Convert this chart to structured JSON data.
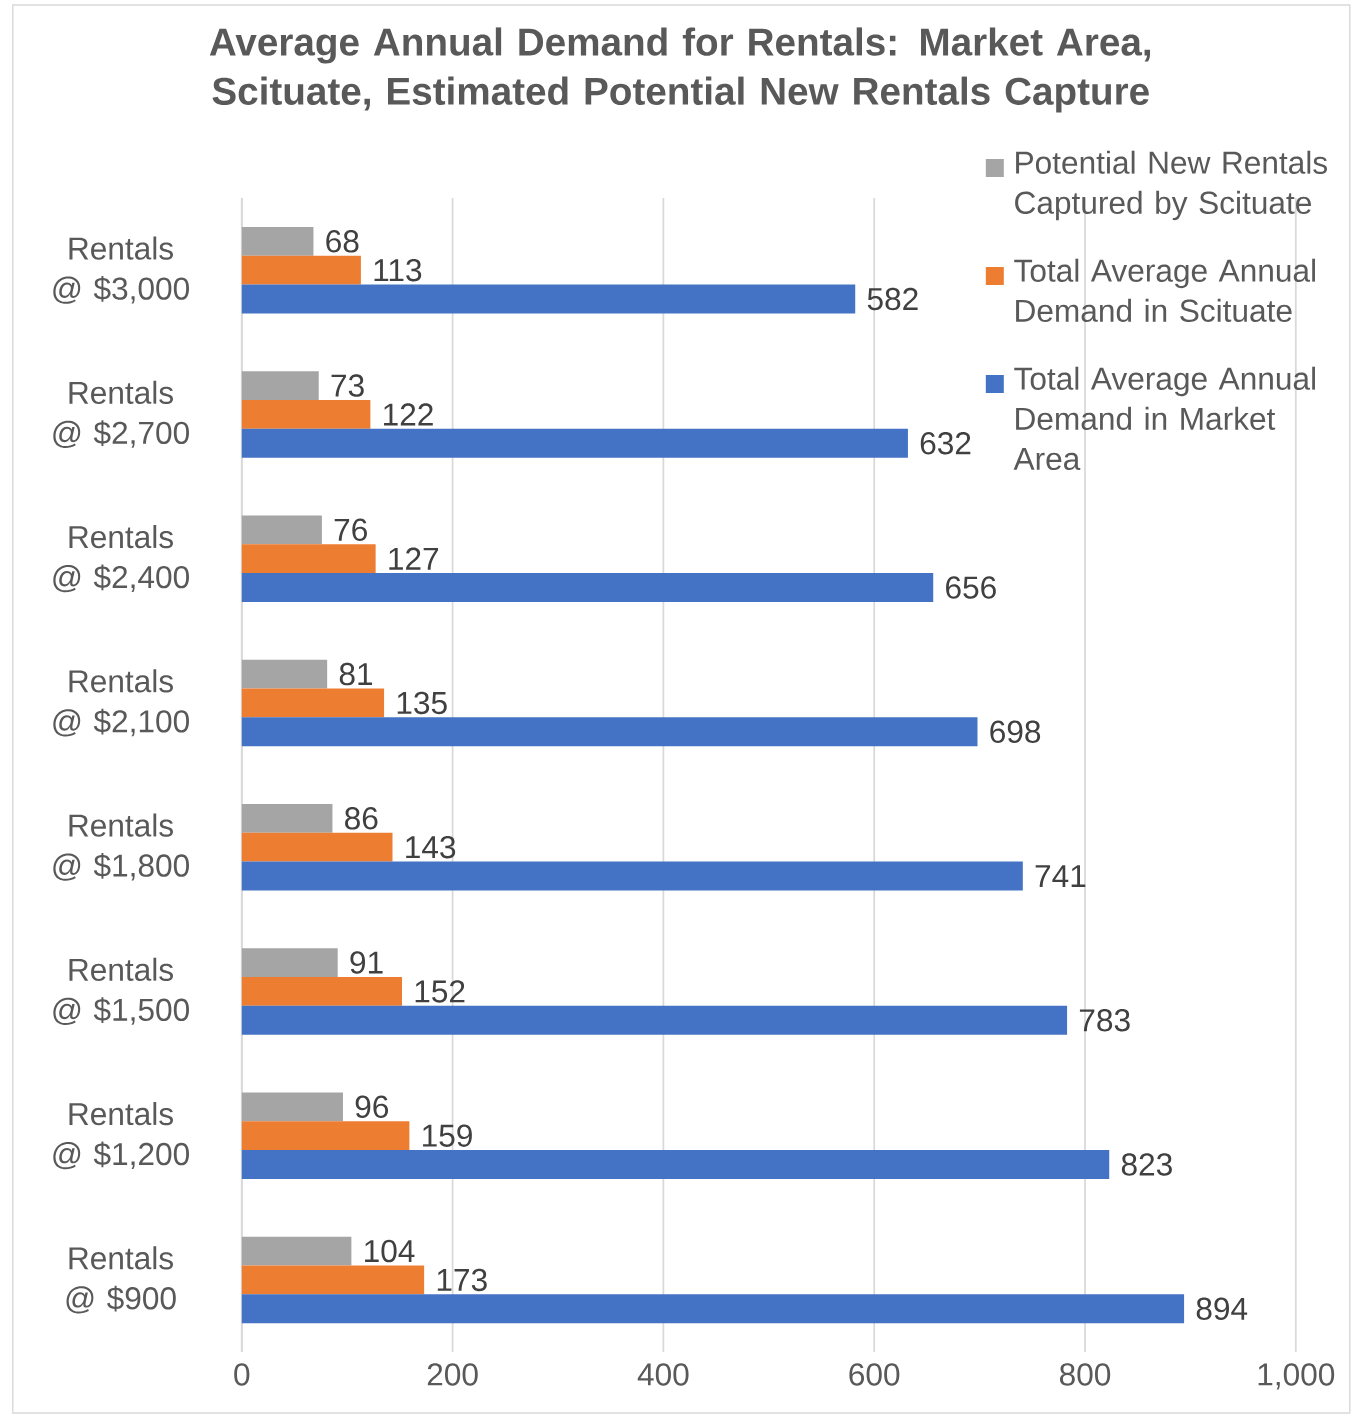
{
  "chart_data": {
    "type": "bar",
    "orientation": "horizontal",
    "title": "Average Annual Demand for Rentals: Market Area, Scituate, Estimated Potential New Rentals Capture",
    "categories": [
      "Rentals @ $3,000",
      "Rentals @ $2,700",
      "Rentals @ $2,400",
      "Rentals @ $2,100",
      "Rentals @ $1,800",
      "Rentals @ $1,500",
      "Rentals @ $1,200",
      "Rentals @ $900"
    ],
    "series": [
      {
        "name": "Potential New Rentals Captured by Scituate",
        "color": "#a5a5a5",
        "values": [
          68,
          73,
          76,
          81,
          86,
          91,
          96,
          104
        ]
      },
      {
        "name": "Total Average Annual Demand in Scituate",
        "color": "#ed7d31",
        "values": [
          113,
          122,
          127,
          135,
          143,
          152,
          159,
          173
        ]
      },
      {
        "name": "Total Average Annual Demand in Market Area",
        "color": "#4472c4",
        "values": [
          582,
          632,
          656,
          698,
          741,
          783,
          823,
          894
        ]
      }
    ],
    "xlim": [
      0,
      1000
    ],
    "xticks": [
      0,
      200,
      400,
      600,
      800,
      {
        "value": 1000,
        "label": "1,000"
      }
    ],
    "grid": "x",
    "legend": "top right",
    "data_labels": true
  }
}
